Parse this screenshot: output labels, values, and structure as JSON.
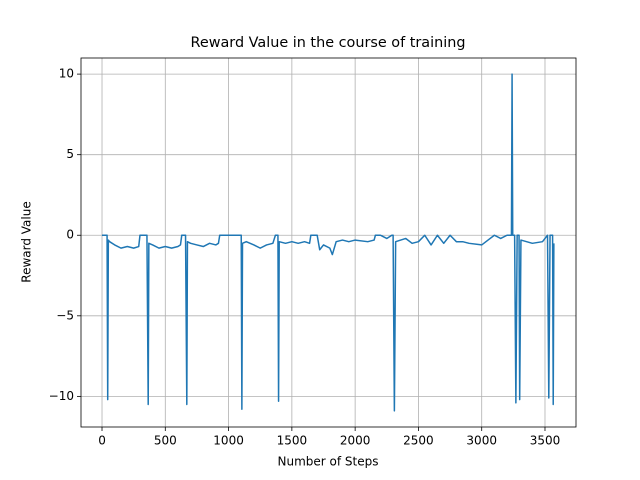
{
  "chart_data": {
    "type": "line",
    "title": "Reward Value in the course of training",
    "xlabel": "Number of Steps",
    "ylabel": "Reward Value",
    "x": [
      0,
      40,
      45,
      50,
      60,
      100,
      150,
      200,
      250,
      290,
      300,
      355,
      365,
      370,
      400,
      450,
      500,
      550,
      600,
      620,
      630,
      660,
      670,
      675,
      700,
      750,
      800,
      850,
      900,
      920,
      930,
      1000,
      1050,
      1100,
      1105,
      1110,
      1140,
      1200,
      1250,
      1300,
      1350,
      1370,
      1390,
      1395,
      1400,
      1450,
      1500,
      1550,
      1600,
      1640,
      1650,
      1700,
      1720,
      1750,
      1800,
      1820,
      1850,
      1900,
      1950,
      2000,
      2100,
      2150,
      2160,
      2200,
      2250,
      2290,
      2300,
      2310,
      2320,
      2400,
      2450,
      2500,
      2550,
      2600,
      2650,
      2700,
      2750,
      2800,
      2850,
      2900,
      3000,
      3050,
      3100,
      3150,
      3200,
      3235,
      3240,
      3245,
      3260,
      3270,
      3280,
      3295,
      3300,
      3310,
      3400,
      3480,
      3500,
      3520,
      3530,
      3540,
      3560,
      3565,
      3570
    ],
    "series": [
      {
        "name": "Reward Value",
        "color": "#1f77b4",
        "values": [
          0,
          0,
          -10.2,
          -0.3,
          -0.4,
          -0.6,
          -0.8,
          -0.7,
          -0.8,
          -0.7,
          0,
          0,
          -10.5,
          -0.5,
          -0.6,
          -0.8,
          -0.7,
          -0.8,
          -0.7,
          -0.6,
          0,
          0,
          -10.5,
          -0.4,
          -0.5,
          -0.6,
          -0.7,
          -0.5,
          -0.6,
          -0.5,
          0,
          0,
          0,
          0,
          -10.8,
          -0.5,
          -0.4,
          -0.6,
          -0.8,
          -0.6,
          -0.5,
          0,
          0,
          -10.3,
          -0.4,
          -0.5,
          -0.4,
          -0.5,
          -0.4,
          -0.5,
          0,
          0,
          -0.9,
          -0.6,
          -0.8,
          -1.2,
          -0.4,
          -0.3,
          -0.4,
          -0.3,
          -0.4,
          -0.3,
          0,
          0,
          -0.2,
          0,
          0,
          -10.9,
          -0.4,
          -0.2,
          -0.5,
          -0.4,
          0,
          -0.6,
          0,
          -0.5,
          0,
          -0.4,
          -0.4,
          -0.5,
          -0.6,
          -0.3,
          0,
          -0.2,
          0,
          0,
          10,
          0,
          0,
          -10.4,
          0,
          0,
          -10.2,
          -0.3,
          -0.5,
          -0.4,
          -0.2,
          0,
          -10.1,
          0,
          0,
          -10.5,
          -0.5
        ]
      }
    ],
    "xlim": [
      -166,
      3745
    ],
    "ylim": [
      -11.9,
      11.0
    ],
    "xticks": [
      0,
      500,
      1000,
      1500,
      2000,
      2500,
      3000,
      3500
    ],
    "yticks": [
      {
        "value": -10,
        "label": "−10"
      },
      {
        "value": -5,
        "label": "−5"
      },
      0,
      5,
      10
    ],
    "grid": true
  }
}
